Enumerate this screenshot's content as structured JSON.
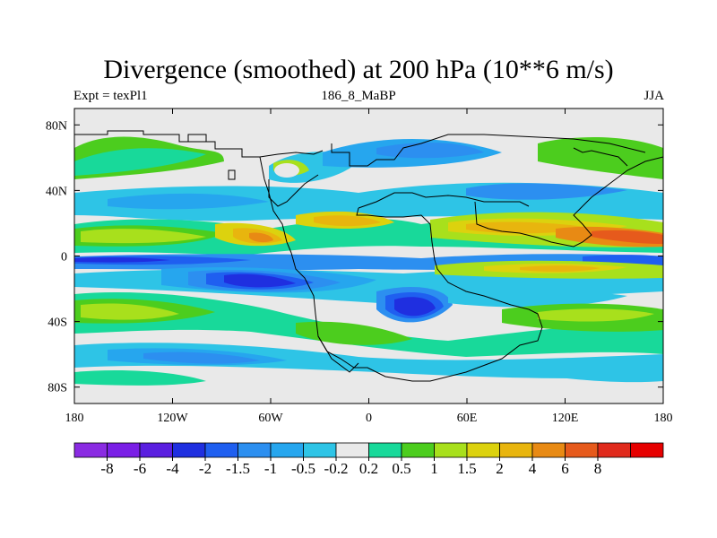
{
  "title": "Divergence (smoothed) at 200 hPa (10**6 m/s)",
  "subtitle_left": "Expt = texPl1",
  "subtitle_center": "186_8_MaBP",
  "subtitle_right": "JJA",
  "map": {
    "lon_range": [
      -180,
      180
    ],
    "lat_range": [
      -90,
      90
    ],
    "background_color": "#e9e9e9",
    "x_ticks": [
      {
        "lon": -180,
        "label": "180"
      },
      {
        "lon": -120,
        "label": "120W"
      },
      {
        "lon": -60,
        "label": "60W"
      },
      {
        "lon": 0,
        "label": "0"
      },
      {
        "lon": 60,
        "label": "60E"
      },
      {
        "lon": 120,
        "label": "120E"
      },
      {
        "lon": 180,
        "label": "180"
      }
    ],
    "y_ticks": [
      {
        "lat": 80,
        "label": "80N"
      },
      {
        "lat": 40,
        "label": "40N"
      },
      {
        "lat": 0,
        "label": "0"
      },
      {
        "lat": -40,
        "label": "40S"
      },
      {
        "lat": -80,
        "label": "80S"
      }
    ]
  },
  "colorbar": {
    "colors": [
      "#8a2be2",
      "#7a1fe6",
      "#5a1fe0",
      "#1f2fe0",
      "#1f5ff0",
      "#2c8ff0",
      "#26a6ee",
      "#2ec4e6",
      "#e9e9e9",
      "#18d99a",
      "#4ccd1e",
      "#a8e01c",
      "#dcd20e",
      "#e8b50e",
      "#e88a14",
      "#e65a1c",
      "#e02a1c",
      "#e60000"
    ],
    "labels": [
      "-8",
      "-6",
      "-4",
      "-2",
      "-1.5",
      "-1",
      "-0.5",
      "-0.2",
      "0.2",
      "0.5",
      "1",
      "1.5",
      "2",
      "4",
      "6",
      "8"
    ]
  }
}
